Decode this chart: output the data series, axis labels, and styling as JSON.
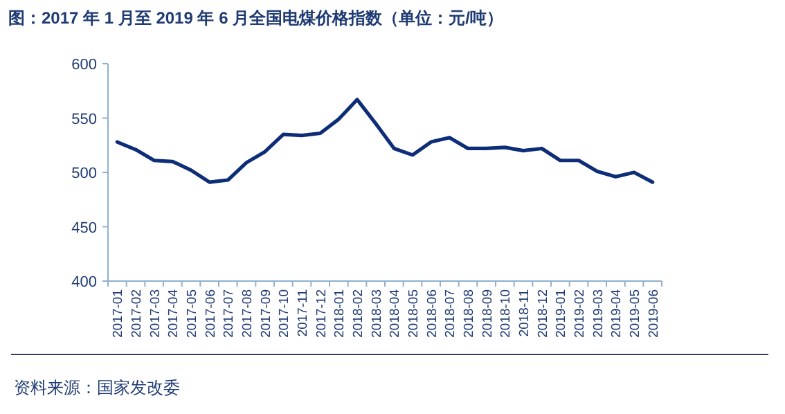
{
  "chart_data": {
    "type": "line",
    "title": "图：2017 年 1 月至 2019 年 6 月全国电煤价格指数（单位：元/吨）",
    "categories": [
      "2017-01",
      "2017-02",
      "2017-03",
      "2017-04",
      "2017-05",
      "2017-06",
      "2017-07",
      "2017-08",
      "2017-09",
      "2017-10",
      "2017-11",
      "2017-12",
      "2018-01",
      "2018-02",
      "2018-03",
      "2018-04",
      "2018-05",
      "2018-06",
      "2018-07",
      "2018-08",
      "2018-09",
      "2018-10",
      "2018-11",
      "2018-12",
      "2019-01",
      "2019-02",
      "2019-03",
      "2019-04",
      "2019-05",
      "2019-06"
    ],
    "series": [
      {
        "color": "#0d2d78",
        "values": [
          528,
          521,
          511,
          510,
          502,
          491,
          493,
          509,
          519,
          535,
          534,
          536,
          549,
          567,
          545,
          522,
          516,
          528,
          532,
          522,
          522,
          523,
          520,
          522,
          511,
          511,
          501,
          496,
          500,
          491
        ]
      }
    ],
    "ylim": [
      400,
      600
    ],
    "yticks": [
      400,
      450,
      500,
      550,
      600
    ],
    "grid": false,
    "marker": "none",
    "line_style": "solid",
    "annotations": [
      "资料来源：国家发改委"
    ]
  }
}
